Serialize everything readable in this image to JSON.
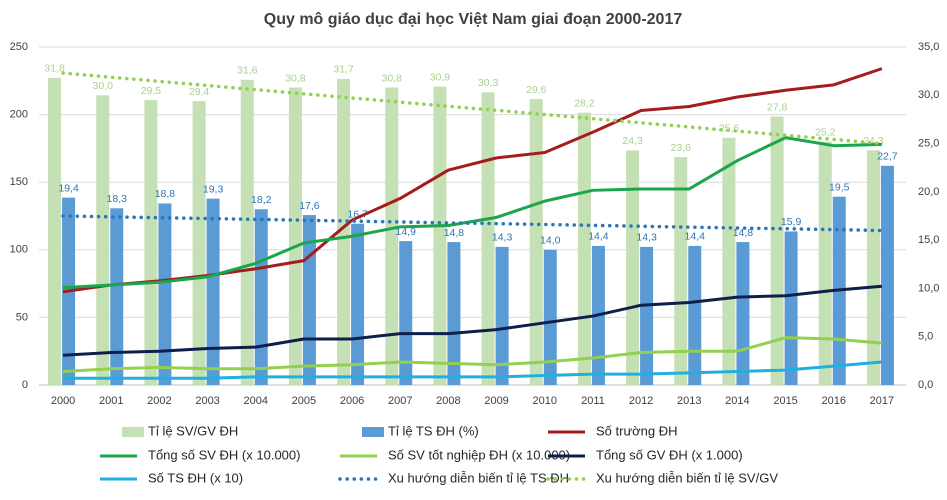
{
  "chart_data": {
    "type": "combo",
    "title": "Quy mô giáo dục đại học Việt Nam giai đoạn 2000-2017",
    "categories": [
      "2000",
      "2001",
      "2002",
      "2003",
      "2004",
      "2005",
      "2006",
      "2007",
      "2008",
      "2009",
      "2010",
      "2011",
      "2012",
      "2013",
      "2014",
      "2015",
      "2016",
      "2017"
    ],
    "ylim": [
      0,
      250
    ],
    "yticks": [
      0,
      50,
      100,
      150,
      200,
      250
    ],
    "y2lim": [
      0,
      35
    ],
    "y2ticks": [
      {
        "value": 0,
        "label": "0,0"
      },
      {
        "value": 5,
        "label": "5,0"
      },
      {
        "value": 10,
        "label": "10,0"
      },
      {
        "value": 15,
        "label": "15,0"
      },
      {
        "value": 20,
        "label": "20,0"
      },
      {
        "value": 25,
        "label": "25,0"
      },
      {
        "value": 30,
        "label": "30,0"
      },
      {
        "value": 35,
        "label": "35,0"
      }
    ],
    "grid": true,
    "legend": "bottom",
    "series": [
      {
        "name": "Tỉ lệ SV/GV ĐH",
        "type": "bar",
        "axis": "y2",
        "color": "#c5e0b4",
        "label_color": "#a9d18e",
        "values": [
          31.8,
          30.0,
          29.5,
          29.4,
          31.6,
          30.8,
          31.7,
          30.8,
          30.9,
          30.3,
          29.6,
          28.2,
          24.3,
          23.6,
          25.6,
          27.8,
          25.2,
          24.3
        ],
        "value_labels": [
          "31,8",
          "30,0",
          "29,5",
          "29,4",
          "31,6",
          "30,8",
          "31,7",
          "30,8",
          "30,9",
          "30,3",
          "29,6",
          "28,2",
          "24,3",
          "23,6",
          "25,6",
          "27,8",
          "25,2",
          "24,3"
        ]
      },
      {
        "name": "Tỉ lệ TS ĐH (%)",
        "type": "bar",
        "axis": "y2",
        "color": "#5b9bd5",
        "label_color": "#2e75b6",
        "values": [
          19.4,
          18.3,
          18.8,
          19.3,
          18.2,
          17.6,
          16.7,
          14.9,
          14.8,
          14.3,
          14.0,
          14.4,
          14.3,
          14.4,
          14.8,
          15.9,
          19.5,
          22.7
        ],
        "value_labels": [
          "19,4",
          "18,3",
          "18,8",
          "19,3",
          "18,2",
          "17,6",
          "16,7",
          "14,9",
          "14,8",
          "14,3",
          "14,0",
          "14,4",
          "14,3",
          "14,4",
          "14,8",
          "15,9",
          "19,5",
          "22,7"
        ]
      },
      {
        "name": "Số trường ĐH",
        "type": "line",
        "axis": "y",
        "color": "#a51c1c",
        "values": [
          69,
          74,
          77,
          81,
          86,
          92,
          122,
          138,
          159,
          168,
          172,
          187,
          203,
          206,
          213,
          218,
          222,
          234
        ]
      },
      {
        "name": "Tổng số SV ĐH (x 10.000)",
        "type": "line",
        "axis": "y",
        "color": "#1aa64b",
        "values": [
          72,
          74,
          76,
          80,
          90,
          105,
          110,
          117,
          118,
          124,
          136,
          144,
          145,
          145,
          166,
          183,
          177,
          178
        ]
      },
      {
        "name": "Số SV tốt nghiệp ĐH (x 10.000)",
        "type": "line",
        "axis": "y",
        "color": "#92d050",
        "values": [
          10,
          12,
          13,
          12,
          12,
          14,
          15,
          17,
          16,
          15,
          17,
          20,
          24,
          25,
          25,
          35,
          34,
          31
        ]
      },
      {
        "name": "Tổng số GV ĐH (x 1.000)",
        "type": "line",
        "axis": "y",
        "color": "#0d1f4a",
        "values": [
          22,
          24,
          25,
          27,
          28,
          34,
          34,
          38,
          38,
          41,
          46,
          51,
          59,
          61,
          65,
          66,
          70,
          73
        ]
      },
      {
        "name": "Số TS ĐH (x 10)",
        "type": "line",
        "axis": "y",
        "color": "#1fb0e0",
        "values": [
          5,
          5,
          5,
          5,
          6,
          6,
          6,
          6,
          6,
          6,
          7,
          8,
          8,
          9,
          10,
          11,
          14,
          17
        ]
      },
      {
        "name": "Xu hướng diễn biến tỉ lệ TS ĐH",
        "type": "line",
        "axis": "y2",
        "color": "#2e75b6",
        "dotted": true,
        "values": [
          17.5,
          17.41,
          17.32,
          17.24,
          17.15,
          17.06,
          16.97,
          16.88,
          16.79,
          16.71,
          16.62,
          16.53,
          16.44,
          16.35,
          16.26,
          16.18,
          16.09,
          16.0
        ]
      },
      {
        "name": "Xu hướng diễn biến tỉ lệ SV/GV",
        "type": "line",
        "axis": "y2",
        "color": "#92d050",
        "dotted": true,
        "values": [
          32.3,
          31.87,
          31.44,
          31.01,
          30.58,
          30.15,
          29.72,
          29.29,
          28.86,
          28.44,
          28.01,
          27.58,
          27.15,
          26.72,
          26.29,
          25.86,
          25.43,
          25.0
        ]
      }
    ]
  }
}
